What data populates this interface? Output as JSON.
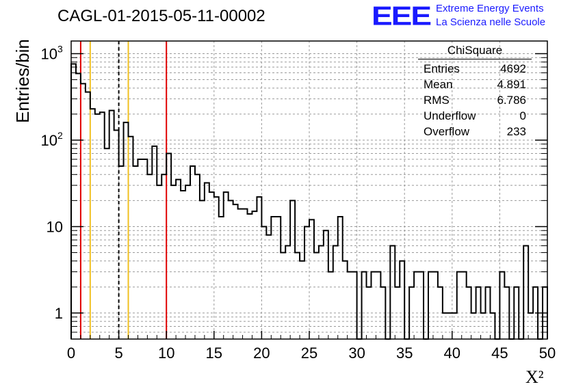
{
  "chart_data": {
    "type": "histogram",
    "title": "CAGL-01-2015-05-11-00002",
    "xlabel": "X²",
    "ylabel": "Entries/bin",
    "xlim": [
      0,
      50
    ],
    "ylim": [
      0.5,
      1400
    ],
    "yscale": "log",
    "grid": true,
    "x_ticks": [
      "0",
      "5",
      "10",
      "15",
      "20",
      "25",
      "30",
      "35",
      "40",
      "45",
      "50"
    ],
    "y_ticks": [
      {
        "value": 1,
        "label": "1"
      },
      {
        "value": 10,
        "label": "10"
      },
      {
        "value": 100,
        "label": "10",
        "sup": "2"
      },
      {
        "value": 1000,
        "label": "10",
        "sup": "3"
      }
    ],
    "bin_width": 0.5,
    "bin_start": 0,
    "values": [
      760,
      590,
      450,
      360,
      230,
      200,
      210,
      80,
      220,
      130,
      50,
      160,
      110,
      50,
      60,
      60,
      40,
      85,
      30,
      40,
      70,
      30,
      35,
      26,
      30,
      50,
      40,
      20,
      32,
      25,
      22,
      13,
      25,
      20,
      18,
      16,
      16,
      14,
      15,
      22,
      10,
      8,
      13,
      13,
      5,
      6,
      20,
      5,
      4,
      10,
      12,
      5,
      6,
      9,
      3,
      6,
      13,
      4,
      3,
      3,
      0,
      3,
      2,
      3,
      3,
      2,
      0,
      6,
      2,
      4,
      0,
      2,
      3,
      3,
      0,
      3,
      3,
      2,
      1,
      1,
      1,
      3,
      3,
      2,
      1,
      2,
      1,
      2,
      1,
      0,
      3,
      2,
      0,
      2,
      0,
      6,
      1,
      2,
      0,
      2
    ],
    "vertical_lines": [
      {
        "x": 1,
        "color": "#e00000",
        "style": "solid"
      },
      {
        "x": 2,
        "color": "#f0c020",
        "style": "solid"
      },
      {
        "x": 5,
        "color": "#000000",
        "style": "dashed"
      },
      {
        "x": 6,
        "color": "#f0c020",
        "style": "solid"
      },
      {
        "x": 10,
        "color": "#e00000",
        "style": "solid"
      }
    ],
    "stats": {
      "title": "ChiSquare",
      "rows": [
        {
          "label": "Entries",
          "value": "4692"
        },
        {
          "label": "Mean",
          "value": "4.891"
        },
        {
          "label": "RMS",
          "value": "6.786"
        },
        {
          "label": "Underflow",
          "value": "0"
        },
        {
          "label": "Overflow",
          "value": "233"
        }
      ]
    }
  },
  "logo": {
    "mark": "EEE",
    "line1": "Extreme Energy Events",
    "line2": "La Scienza nelle Scuole",
    "color": "#1a1aff"
  }
}
